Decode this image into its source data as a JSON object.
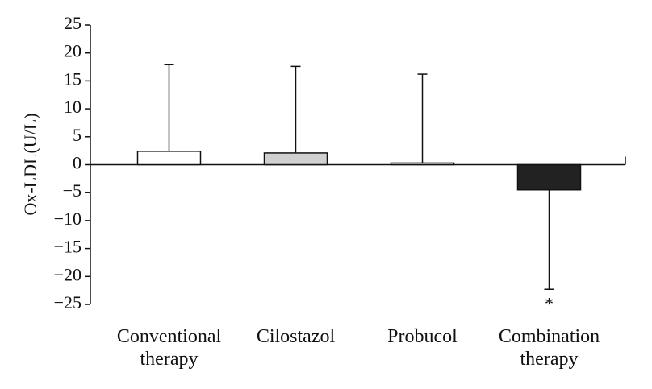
{
  "chart_data": {
    "type": "bar",
    "ylabel": "Ox-LDL(U/L)",
    "categories": [
      "Conventional therapy",
      "Cilostazol",
      "Probucol",
      "Combination therapy"
    ],
    "values": [
      2.4,
      2.1,
      0.3,
      -4.5
    ],
    "errors": [
      15.5,
      15.5,
      15.9,
      17.8
    ],
    "colors": [
      "#ffffff",
      "#d0d0d0",
      "#f4f4f4",
      "#222222"
    ],
    "annotation": "*",
    "ylim": [
      -25,
      25
    ],
    "yticks": [
      {
        "value": -25,
        "label": "−25"
      },
      {
        "value": -20,
        "label": "−20"
      },
      {
        "value": -15,
        "label": "−15"
      },
      {
        "value": -10,
        "label": "−10"
      },
      {
        "value": -5,
        "label": "−5"
      },
      0,
      5,
      10,
      15,
      20,
      25
    ]
  }
}
